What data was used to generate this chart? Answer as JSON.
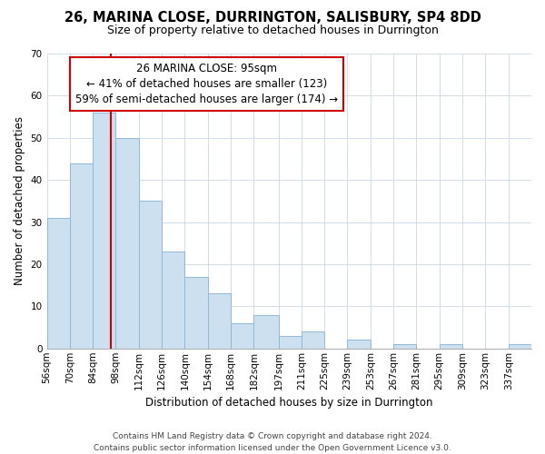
{
  "title": "26, MARINA CLOSE, DURRINGTON, SALISBURY, SP4 8DD",
  "subtitle": "Size of property relative to detached houses in Durrington",
  "xlabel": "Distribution of detached houses by size in Durrington",
  "ylabel": "Number of detached properties",
  "bin_labels": [
    "56sqm",
    "70sqm",
    "84sqm",
    "98sqm",
    "112sqm",
    "126sqm",
    "140sqm",
    "154sqm",
    "168sqm",
    "182sqm",
    "197sqm",
    "211sqm",
    "225sqm",
    "239sqm",
    "253sqm",
    "267sqm",
    "281sqm",
    "295sqm",
    "309sqm",
    "323sqm",
    "337sqm"
  ],
  "bar_heights": [
    31,
    44,
    56,
    50,
    35,
    23,
    17,
    13,
    6,
    8,
    3,
    4,
    0,
    2,
    0,
    1,
    0,
    1,
    0,
    0,
    1
  ],
  "bar_color": "#cce0f0",
  "bar_edge_color": "#90b8d8",
  "vline_x": 95,
  "vline_color": "#cc0000",
  "ylim": [
    0,
    70
  ],
  "yticks": [
    0,
    10,
    20,
    30,
    40,
    50,
    60,
    70
  ],
  "annotation_line1": "26 MARINA CLOSE: 95sqm",
  "annotation_line2": "← 41% of detached houses are smaller (123)",
  "annotation_line3": "59% of semi-detached houses are larger (174) →",
  "annotation_box_color": "#ffffff",
  "annotation_box_edge_color": "#cc0000",
  "footer_line1": "Contains HM Land Registry data © Crown copyright and database right 2024.",
  "footer_line2": "Contains public sector information licensed under the Open Government Licence v3.0.",
  "bin_edges": [
    56,
    70,
    84,
    98,
    112,
    126,
    140,
    154,
    168,
    182,
    197,
    211,
    225,
    239,
    253,
    267,
    281,
    295,
    309,
    323,
    337,
    351
  ],
  "grid_color": "#d0dce8",
  "title_fontsize": 10.5,
  "subtitle_fontsize": 9,
  "ylabel_fontsize": 8.5,
  "xlabel_fontsize": 8.5,
  "tick_fontsize": 7.5,
  "annotation_fontsize": 8.5,
  "footer_fontsize": 6.5
}
